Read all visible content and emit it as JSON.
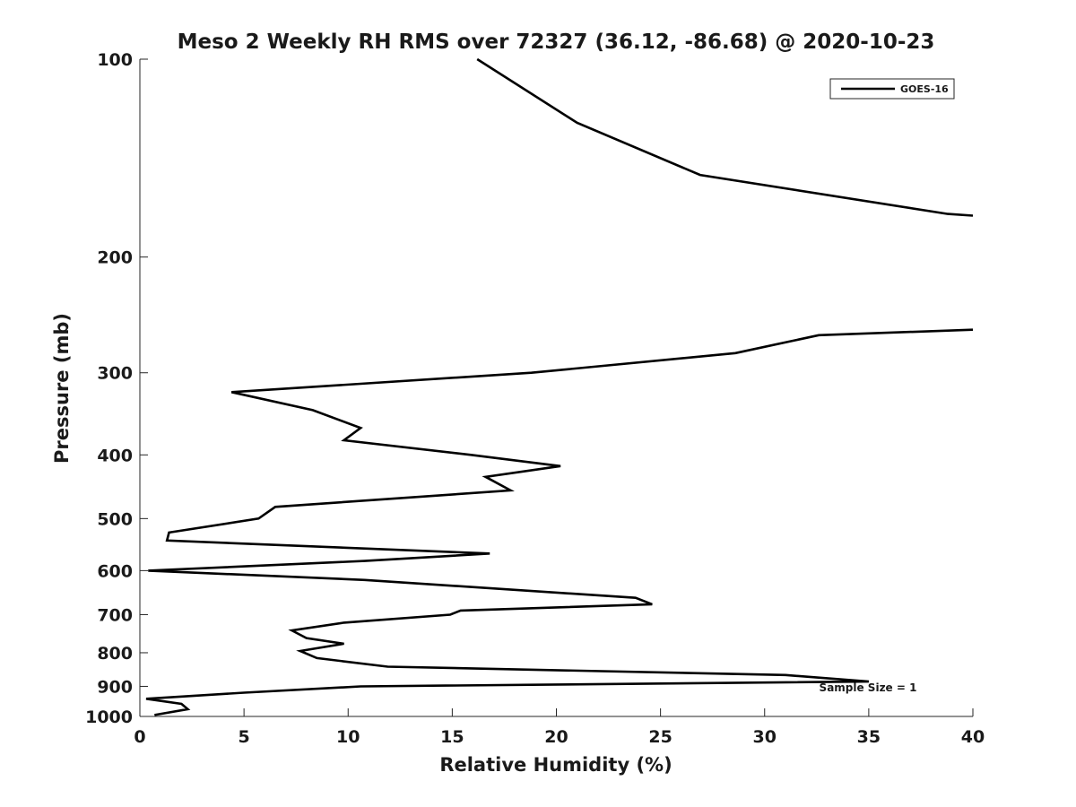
{
  "chart_data": {
    "type": "line",
    "title": "Meso 2 Weekly RH RMS over 72327 (36.12, -86.68) @ 2020-10-23",
    "xlabel": "Relative Humidity (%)",
    "ylabel": "Pressure (mb)",
    "xlim": [
      0,
      40
    ],
    "ylim": [
      100,
      1000
    ],
    "yscale": "log",
    "yreversed": true,
    "grid": false,
    "legend_position": "top-right",
    "x_ticks": [
      0,
      5,
      10,
      15,
      20,
      25,
      30,
      35,
      40
    ],
    "y_ticks": [
      100,
      200,
      300,
      400,
      500,
      600,
      700,
      800,
      900,
      1000
    ],
    "annotation": "Sample Size = 1",
    "series": [
      {
        "name": "GOES-16",
        "color": "#000000",
        "segments": [
          [
            [
              16.2,
              100
            ],
            [
              21.0,
              125
            ],
            [
              26.9,
              150
            ],
            [
              38.8,
              172
            ],
            [
              40.0,
              173
            ]
          ],
          [
            [
              40.0,
              258
            ],
            [
              32.6,
              263
            ],
            [
              28.6,
              280
            ],
            [
              18.8,
              300
            ],
            [
              4.4,
              321
            ],
            [
              8.3,
              342
            ],
            [
              10.6,
              364
            ],
            [
              9.8,
              380
            ],
            [
              15.9,
              400
            ],
            [
              20.2,
              416
            ],
            [
              16.6,
              432
            ],
            [
              17.8,
              453
            ],
            [
              6.5,
              480
            ],
            [
              5.7,
              500
            ],
            [
              1.4,
              525
            ],
            [
              1.3,
              540
            ],
            [
              16.8,
              565
            ],
            [
              10.8,
              580
            ],
            [
              0.4,
              600
            ],
            [
              10.8,
              620
            ],
            [
              23.8,
              660
            ],
            [
              24.6,
              675
            ],
            [
              15.4,
              690
            ],
            [
              14.9,
              700
            ],
            [
              9.8,
              720
            ],
            [
              7.3,
              740
            ],
            [
              8.0,
              760
            ],
            [
              9.8,
              775
            ],
            [
              7.7,
              795
            ],
            [
              8.5,
              815
            ],
            [
              11.9,
              840
            ],
            [
              31.0,
              865
            ],
            [
              35.0,
              885
            ],
            [
              10.6,
              900
            ],
            [
              5.0,
              920
            ],
            [
              0.3,
              940
            ],
            [
              2.0,
              957
            ],
            [
              2.3,
              975
            ],
            [
              0.7,
              995
            ]
          ]
        ]
      }
    ]
  }
}
